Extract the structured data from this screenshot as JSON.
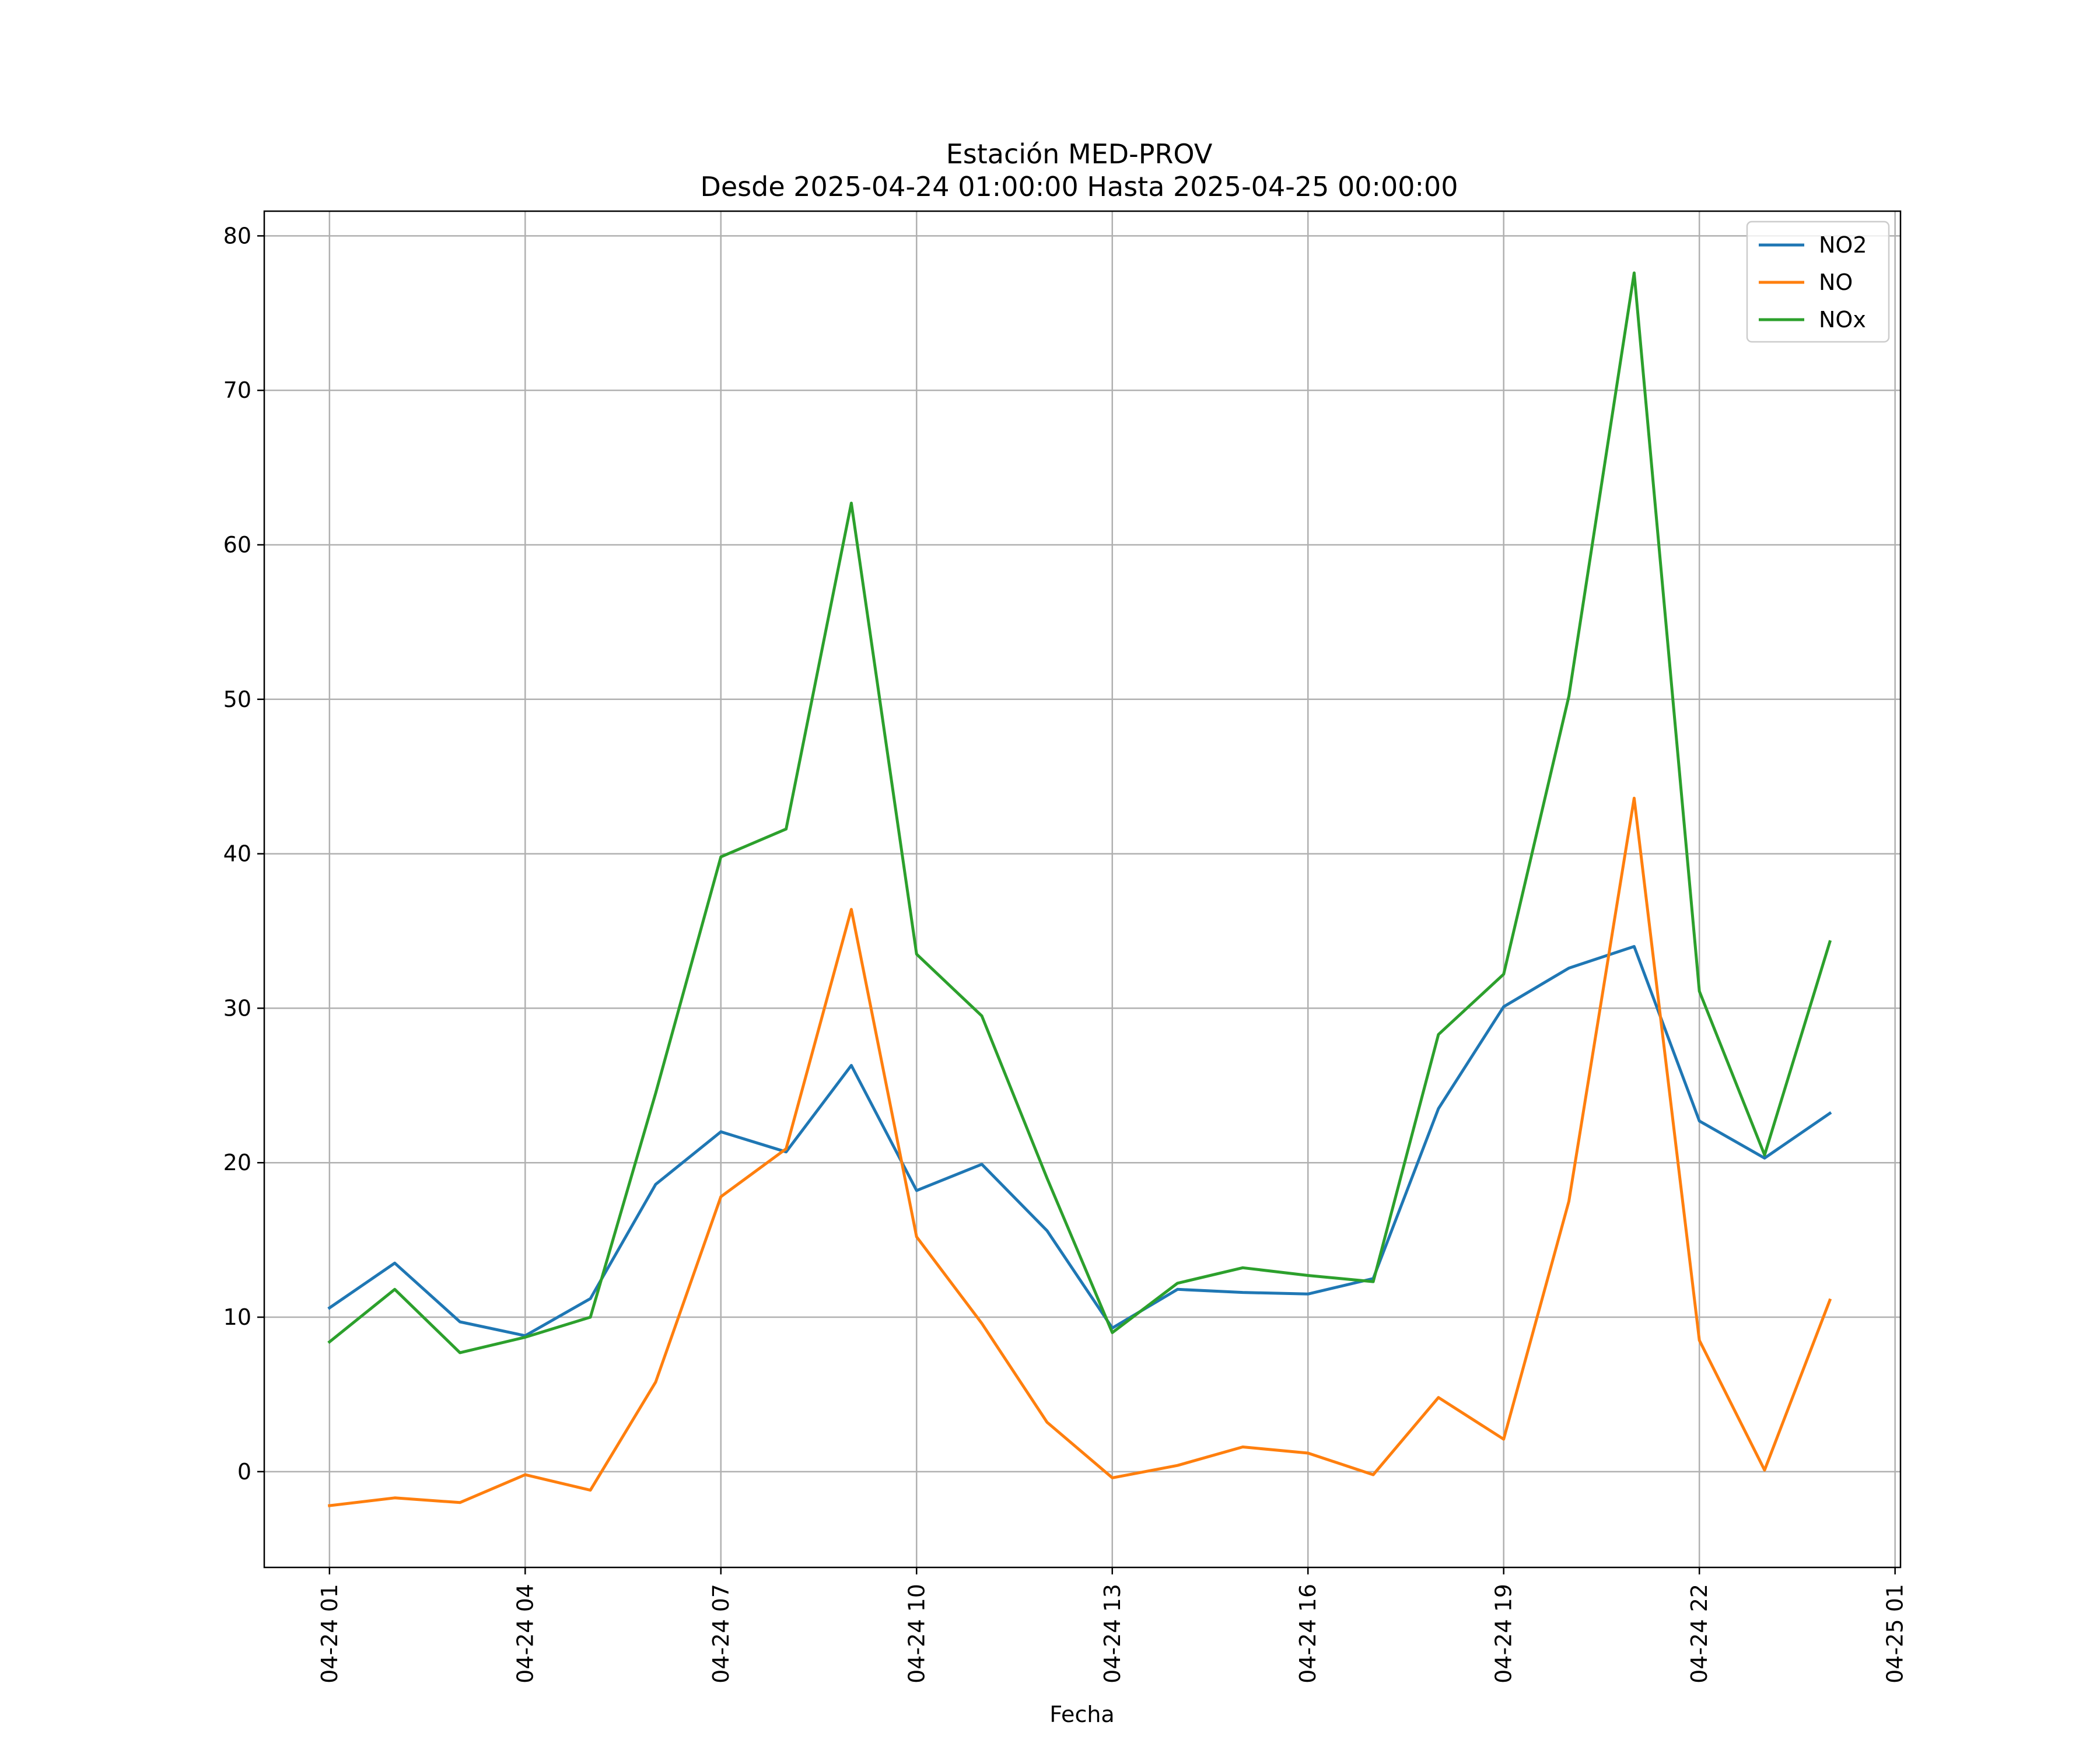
{
  "chart_data": {
    "type": "line",
    "title": "Estación MED-PROV",
    "subtitle": "Desde 2025-04-24 01:00:00 Hasta 2025-04-25 00:00:00",
    "xlabel": "Fecha",
    "ylabel": "",
    "x": [
      "2025-04-24 01:00",
      "2025-04-24 02:00",
      "2025-04-24 03:00",
      "2025-04-24 04:00",
      "2025-04-24 05:00",
      "2025-04-24 06:00",
      "2025-04-24 07:00",
      "2025-04-24 08:00",
      "2025-04-24 09:00",
      "2025-04-24 10:00",
      "2025-04-24 11:00",
      "2025-04-24 12:00",
      "2025-04-24 13:00",
      "2025-04-24 14:00",
      "2025-04-24 15:00",
      "2025-04-24 16:00",
      "2025-04-24 17:00",
      "2025-04-24 18:00",
      "2025-04-24 19:00",
      "2025-04-24 20:00",
      "2025-04-24 21:00",
      "2025-04-24 22:00",
      "2025-04-24 23:00",
      "2025-04-25 00:00"
    ],
    "x_range": [
      "2025-04-24 00:00",
      "2025-04-25 01:05"
    ],
    "xticks": [
      "04-24 01",
      "04-24 04",
      "04-24 07",
      "04-24 10",
      "04-24 13",
      "04-24 16",
      "04-24 19",
      "04-24 22",
      "04-25 01"
    ],
    "xtick_hours": [
      1,
      4,
      7,
      10,
      13,
      16,
      19,
      22,
      25
    ],
    "ylim": [
      -6.2,
      81.6
    ],
    "yticks": [
      0,
      10,
      20,
      30,
      40,
      50,
      60,
      70,
      80
    ],
    "grid": true,
    "legend_position": "top-right",
    "series": [
      {
        "name": "NO2",
        "color": "#1f77b4",
        "values": [
          10.6,
          13.5,
          9.7,
          8.8,
          11.2,
          18.6,
          22.0,
          20.7,
          26.3,
          18.2,
          19.9,
          15.6,
          9.3,
          11.8,
          11.6,
          11.5,
          12.5,
          23.5,
          30.1,
          32.6,
          34.0,
          22.7,
          20.3,
          23.2
        ]
      },
      {
        "name": "NO",
        "color": "#ff7f0e",
        "values": [
          -2.2,
          -1.7,
          -2.0,
          -0.2,
          -1.2,
          5.8,
          17.8,
          20.9,
          36.4,
          15.2,
          9.6,
          3.2,
          -0.4,
          0.4,
          1.6,
          1.2,
          -0.2,
          4.8,
          2.1,
          17.5,
          43.6,
          8.5,
          0.1,
          11.1
        ]
      },
      {
        "name": "NOx",
        "color": "#2ca02c",
        "values": [
          8.4,
          11.8,
          7.7,
          8.7,
          10.0,
          24.5,
          39.8,
          41.6,
          62.7,
          33.5,
          29.5,
          19.0,
          9.0,
          12.2,
          13.2,
          12.7,
          12.3,
          28.3,
          32.2,
          50.2,
          77.6,
          31.1,
          20.5,
          34.3
        ]
      }
    ]
  }
}
